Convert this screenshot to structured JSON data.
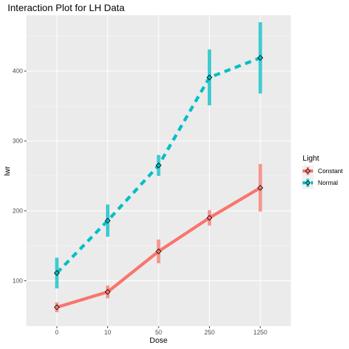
{
  "chart_data": {
    "type": "line",
    "title": "Interaction Plot for LH Data",
    "xlabel": "Dose",
    "ylabel": "lwr",
    "categories": [
      "0",
      "10",
      "50",
      "250",
      "1250"
    ],
    "ylim": [
      35,
      480
    ],
    "y_ticks": [
      100,
      200,
      300,
      400
    ],
    "grid": true,
    "legend": {
      "title": "Light",
      "position": "right"
    },
    "series": [
      {
        "name": "Constant",
        "color": "#F8766D",
        "linestyle": "solid",
        "values": [
          62,
          84,
          142,
          190,
          233
        ],
        "error_low": [
          55,
          75,
          125,
          179,
          199
        ],
        "error_high": [
          69,
          93,
          159,
          201,
          267
        ]
      },
      {
        "name": "Normal",
        "color": "#00BFC4",
        "linestyle": "dashed",
        "values": [
          111,
          186,
          265,
          391,
          419
        ],
        "error_low": [
          89,
          163,
          250,
          351,
          368
        ],
        "error_high": [
          133,
          209,
          280,
          431,
          470
        ]
      }
    ]
  }
}
